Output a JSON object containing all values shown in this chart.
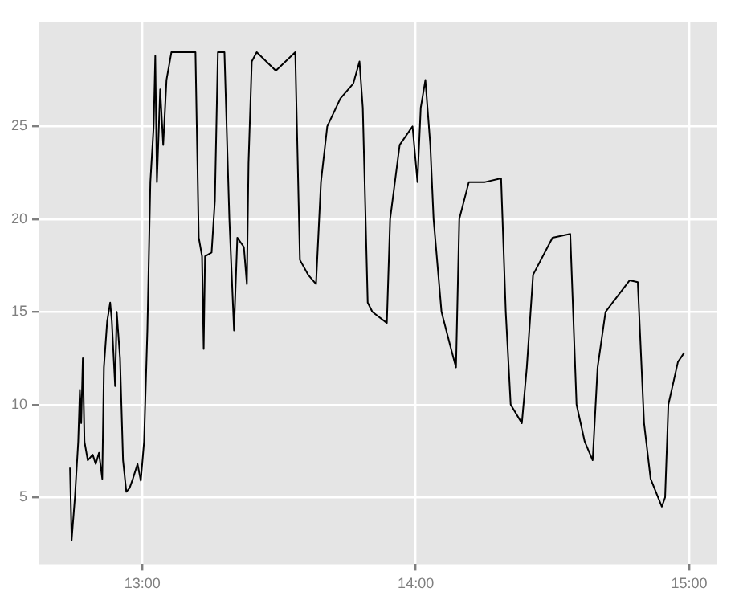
{
  "chart_data": {
    "type": "line",
    "x": [
      12.735,
      12.741,
      12.753,
      12.765,
      12.771,
      12.776,
      12.782,
      12.788,
      12.8,
      12.818,
      12.829,
      12.841,
      12.853,
      12.859,
      12.871,
      12.882,
      12.888,
      12.9,
      12.906,
      12.918,
      12.929,
      12.941,
      12.953,
      12.965,
      12.982,
      12.994,
      13.006,
      13.018,
      13.029,
      13.041,
      13.047,
      13.053,
      13.065,
      13.076,
      13.088,
      13.106,
      13.194,
      13.206,
      13.218,
      13.224,
      13.229,
      13.253,
      13.265,
      13.276,
      13.3,
      13.318,
      13.335,
      13.347,
      13.371,
      13.382,
      13.388,
      13.4,
      13.418,
      13.488,
      13.559,
      13.576,
      13.606,
      13.635,
      13.653,
      13.676,
      13.724,
      13.771,
      13.794,
      13.806,
      13.824,
      13.841,
      13.894,
      13.906,
      13.941,
      13.988,
      14.006,
      14.018,
      14.035,
      14.053,
      14.065,
      14.094,
      14.129,
      14.147,
      14.159,
      14.194,
      14.253,
      14.312,
      14.329,
      14.347,
      14.388,
      14.406,
      14.429,
      14.5,
      14.565,
      14.588,
      14.618,
      14.647,
      14.665,
      14.694,
      14.782,
      14.812,
      14.835,
      14.859,
      14.9,
      14.912,
      14.924,
      14.959,
      14.982
    ],
    "series": [
      {
        "color": "#000000",
        "values": [
          6.6,
          2.7,
          5,
          8,
          10.8,
          9,
          12.5,
          8,
          7,
          7.3,
          6.8,
          7.4,
          6,
          12,
          14.5,
          15.5,
          14.5,
          11,
          15,
          12.5,
          7,
          5.3,
          5.5,
          6,
          6.8,
          5.9,
          8,
          14,
          22,
          25,
          28.8,
          22,
          27,
          24,
          27.5,
          29,
          29,
          19,
          18,
          13,
          18,
          18.2,
          21,
          29,
          29,
          20,
          14,
          19,
          18.5,
          16.5,
          23,
          28.5,
          29,
          28,
          29,
          17.8,
          17,
          16.5,
          22,
          25,
          26.5,
          27.3,
          28.5,
          26,
          15.5,
          15,
          14.4,
          20,
          24,
          25,
          22,
          26,
          27.5,
          24,
          20,
          15,
          13,
          12,
          20,
          22,
          22,
          22.2,
          15,
          10,
          9,
          12,
          17,
          19,
          19.2,
          10,
          8,
          7,
          12,
          15,
          16.7,
          16.6,
          9,
          6,
          4.5,
          5,
          10,
          12.3,
          12.8
        ]
      }
    ],
    "xlim": [
      12.62,
      15.1
    ],
    "xticks": [
      {
        "value": 13,
        "label": "13:00"
      },
      {
        "value": 14,
        "label": "14:00"
      },
      {
        "value": 15,
        "label": "15:00"
      }
    ],
    "ylim": [
      1.4,
      30.6
    ],
    "yticks": [
      5,
      10,
      15,
      20,
      25
    ],
    "grid": true,
    "legend": false,
    "marker": "none",
    "line_style": "solid"
  }
}
